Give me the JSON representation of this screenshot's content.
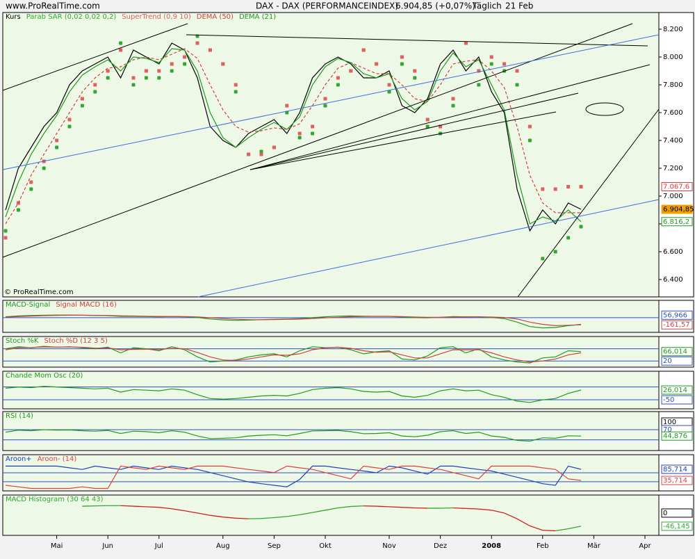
{
  "header": {
    "site": "www.ProRealTime.com",
    "title": "DAX - DAX (PERFORMANCEINDEX)",
    "quote": "6.904,85 (+0,07%)",
    "period": "Täglich",
    "date": "21 Feb",
    "watermark": "© ProRealTime.com"
  },
  "chart_data": [
    {
      "type": "line",
      "categories": [
        null,
        null,
        null,
        null,
        "Mai",
        null,
        null,
        null,
        "Jun",
        null,
        null,
        null,
        "Jul",
        null,
        null,
        null,
        null,
        "Aug",
        null,
        null,
        null,
        "Sep",
        null,
        null,
        null,
        "Okt",
        null,
        null,
        null,
        null,
        "Nov",
        null,
        null,
        null,
        "Dez",
        null,
        null,
        null,
        "2008",
        null,
        null,
        null,
        "Feb",
        null,
        null,
        null,
        "Mär",
        null,
        null,
        null,
        "Apr"
      ],
      "ylim": [
        6275,
        8320
      ],
      "yticks": [
        {
          "value": 6400,
          "label": "6.400"
        },
        {
          "value": 6600,
          "label": "6.600"
        },
        {
          "value": 6800,
          "label": "6.800"
        },
        {
          "value": 7000,
          "label": "7.000"
        },
        {
          "value": 7200,
          "label": "7.200"
        },
        {
          "value": 7400,
          "label": "7.400"
        },
        {
          "value": 7600,
          "label": "7.600"
        },
        {
          "value": 7800,
          "label": "7.800"
        },
        {
          "value": 8000,
          "label": "8.000"
        },
        {
          "value": 8200,
          "label": "8.200"
        }
      ],
      "series": [
        {
          "name": "Kurs",
          "color": "#000000",
          "style": "line",
          "values": [
            6900,
            7200,
            7350,
            7500,
            7600,
            7800,
            7900,
            7950,
            8000,
            7850,
            8050,
            8000,
            7950,
            8100,
            8050,
            7850,
            7500,
            7400,
            7350,
            7450,
            7500,
            7550,
            7450,
            7600,
            7850,
            7950,
            8000,
            7950,
            7850,
            7850,
            7900,
            7650,
            7600,
            7700,
            7950,
            8050,
            7900,
            8000,
            7750,
            7600,
            7050,
            6750,
            6900,
            6800,
            6950,
            6904.85,
            null,
            null,
            null,
            null,
            null
          ]
        },
        {
          "name": "Parab SAR (0,02 0,02 0,2)",
          "color": "#2fa82f",
          "style": "dots",
          "values": [
            6750,
            6900,
            7050,
            7200,
            7350,
            7500,
            7650,
            7750,
            7850,
            8100,
            7800,
            7850,
            7850,
            7900,
            7950,
            8150,
            8050,
            7950,
            7750,
            7300,
            7320,
            7350,
            7600,
            7420,
            7450,
            7650,
            7800,
            7900,
            8050,
            7950,
            7750,
            7950,
            7850,
            7500,
            7450,
            7650,
            8100,
            7800,
            7950,
            7900,
            7800,
            7400,
            6550,
            6600,
            6700,
            6780,
            null,
            null,
            null,
            null,
            null
          ]
        },
        {
          "name": "SuperTrend (0,9 10)",
          "color": "#e06060",
          "style": "squares",
          "values": [
            6700,
            6950,
            7100,
            7250,
            7400,
            7550,
            7700,
            7800,
            7900,
            8050,
            7850,
            7900,
            7900,
            7950,
            8000,
            8100,
            8050,
            7950,
            7800,
            7300,
            7300,
            7350,
            7650,
            7450,
            7500,
            7700,
            7850,
            7900,
            8050,
            7950,
            7800,
            8000,
            7900,
            7550,
            7500,
            7700,
            8100,
            7900,
            8000,
            7950,
            7900,
            7500,
            7050,
            7050,
            7067.6,
            7067.6,
            null,
            null,
            null,
            null,
            null
          ]
        },
        {
          "name": "DEMA (50)",
          "color": "#d04040",
          "style": "dashed",
          "values": [
            6800,
            6950,
            7150,
            7300,
            7450,
            7600,
            7750,
            7850,
            7920,
            7930,
            7980,
            8000,
            7980,
            8020,
            8060,
            7990,
            7800,
            7620,
            7500,
            7460,
            7470,
            7490,
            7480,
            7520,
            7650,
            7800,
            7920,
            7960,
            7920,
            7880,
            7880,
            7800,
            7700,
            7680,
            7800,
            7950,
            7970,
            7980,
            7900,
            7780,
            7500,
            7150,
            6950,
            6880,
            6880,
            6880,
            null,
            null,
            null,
            null,
            null
          ]
        },
        {
          "name": "DEMA (21)",
          "color": "#1f9a1f",
          "style": "line",
          "values": [
            6850,
            7100,
            7300,
            7450,
            7580,
            7750,
            7870,
            7930,
            7980,
            7900,
            8000,
            7990,
            7960,
            8060,
            8050,
            7900,
            7600,
            7420,
            7350,
            7420,
            7480,
            7530,
            7480,
            7570,
            7800,
            7930,
            7990,
            7960,
            7880,
            7850,
            7880,
            7700,
            7620,
            7680,
            7900,
            8030,
            7930,
            7980,
            7800,
            7620,
            7150,
            6800,
            6850,
            6820,
            6900,
            6816.2,
            null,
            null,
            null,
            null,
            null
          ]
        }
      ],
      "markers": [
        {
          "value": 7067.6,
          "label": "7.067,6",
          "color": "#d04040"
        },
        {
          "value": 6904.85,
          "label": "6.904,85",
          "color": "#f0a000"
        },
        {
          "value": 6816.2,
          "label": "6.816,2",
          "color": "#1f9a1f"
        }
      ]
    },
    {
      "type": "line",
      "ylim": [
        -330,
        390
      ],
      "levels": [
        0
      ],
      "series": [
        {
          "name": "MACD-Signal",
          "color": "#1f9a1f",
          "style": "line",
          "values": [
            20,
            40,
            50,
            55,
            60,
            60,
            55,
            50,
            45,
            30,
            30,
            25,
            20,
            25,
            20,
            5,
            -30,
            -50,
            -60,
            -55,
            -45,
            -35,
            -30,
            -20,
            0,
            20,
            35,
            40,
            35,
            30,
            30,
            15,
            0,
            -5,
            10,
            25,
            20,
            20,
            5,
            -20,
            -100,
            -200,
            -230,
            -220,
            -180,
            -150,
            null,
            null,
            null,
            null,
            null
          ]
        },
        {
          "name": "Signal MACD (16)",
          "color": "#d04040",
          "style": "line",
          "values": [
            10,
            25,
            35,
            45,
            50,
            55,
            55,
            52,
            50,
            42,
            38,
            33,
            28,
            27,
            24,
            18,
            0,
            -20,
            -35,
            -45,
            -45,
            -42,
            -38,
            -32,
            -20,
            -5,
            10,
            22,
            28,
            30,
            30,
            25,
            15,
            8,
            8,
            15,
            18,
            19,
            15,
            5,
            -30,
            -100,
            -150,
            -180,
            -170,
            -161.57,
            null,
            null,
            null,
            null,
            null
          ]
        }
      ],
      "markers": [
        {
          "value": 56.966,
          "label": "56,966",
          "color": "#3050c0"
        },
        {
          "value": -161.57,
          "label": "-161,57",
          "color": "#d04040"
        }
      ]
    },
    {
      "type": "line",
      "ylim": [
        -10,
        140
      ],
      "levels": [
        20,
        80
      ],
      "series": [
        {
          "name": "Stoch %K",
          "color": "#1f9a1f",
          "style": "line",
          "values": [
            80,
            90,
            85,
            92,
            88,
            90,
            85,
            80,
            88,
            60,
            85,
            80,
            70,
            90,
            75,
            40,
            15,
            20,
            25,
            40,
            50,
            55,
            40,
            70,
            90,
            85,
            88,
            75,
            55,
            65,
            70,
            30,
            25,
            45,
            85,
            90,
            60,
            80,
            40,
            25,
            15,
            10,
            35,
            40,
            70,
            66.014,
            null,
            null,
            null,
            null,
            null
          ]
        },
        {
          "name": "Stoch %D (12 3 5)",
          "color": "#d04040",
          "style": "line",
          "values": [
            75,
            85,
            86,
            89,
            88,
            89,
            87,
            83,
            84,
            75,
            77,
            78,
            76,
            82,
            80,
            62,
            40,
            25,
            22,
            30,
            40,
            50,
            48,
            55,
            75,
            85,
            87,
            82,
            70,
            63,
            65,
            50,
            35,
            35,
            55,
            75,
            75,
            75,
            60,
            40,
            25,
            15,
            20,
            30,
            50,
            60,
            null,
            null,
            null,
            null,
            null
          ]
        }
      ],
      "markers": [
        {
          "value": 66.014,
          "label": "66,014",
          "color": "#1f9a1f"
        },
        {
          "value": 20,
          "label": "20",
          "color": "#3050c0"
        }
      ]
    },
    {
      "type": "line",
      "ylim": [
        -120,
        172
      ],
      "levels": [
        50,
        -50
      ],
      "series": [
        {
          "name": "Chande Mom Osc (20)",
          "color": "#1f9a1f",
          "style": "line",
          "values": [
            40,
            50,
            45,
            55,
            50,
            45,
            40,
            35,
            40,
            10,
            30,
            25,
            20,
            35,
            25,
            -10,
            -40,
            -45,
            -40,
            -30,
            -20,
            -15,
            -20,
            0,
            30,
            40,
            45,
            35,
            15,
            10,
            15,
            -20,
            -30,
            -15,
            20,
            35,
            20,
            25,
            -10,
            -30,
            -60,
            -70,
            -50,
            -40,
            0,
            26.014,
            null,
            null,
            null,
            null,
            null
          ]
        }
      ],
      "markers": [
        {
          "value": 26.014,
          "label": "26,014",
          "color": "#1f9a1f"
        },
        {
          "value": -50,
          "label": "-50",
          "color": "#3050c0"
        }
      ]
    },
    {
      "type": "line",
      "ylim": [
        -12,
        141
      ],
      "levels": [
        70,
        30
      ],
      "series": [
        {
          "name": "RSI (14)",
          "color": "#1f9a1f",
          "style": "line",
          "values": [
            60,
            68,
            66,
            70,
            68,
            69,
            66,
            64,
            67,
            55,
            64,
            62,
            58,
            66,
            60,
            45,
            35,
            36,
            38,
            45,
            48,
            50,
            46,
            55,
            65,
            66,
            67,
            62,
            54,
            55,
            58,
            45,
            42,
            48,
            62,
            66,
            55,
            60,
            45,
            40,
            28,
            25,
            38,
            36,
            46,
            44.876,
            null,
            null,
            null,
            null,
            null
          ]
        }
      ],
      "markers": [
        {
          "value": 100,
          "label": "100",
          "color": "#000000"
        },
        {
          "value": 70,
          "label": "70",
          "color": "#3050c0"
        },
        {
          "value": 44.876,
          "label": "44,876",
          "color": "#1f9a1f"
        }
      ]
    },
    {
      "type": "line",
      "ylim": [
        -11,
        151
      ],
      "levels": [
        70,
        30
      ],
      "series": [
        {
          "name": "Aroon+",
          "color": "#2040c0",
          "style": "line",
          "values": [
            100,
            100,
            100,
            100,
            100,
            92,
            85,
            100,
            92,
            85,
            100,
            92,
            85,
            100,
            92,
            85,
            71,
            57,
            43,
            29,
            21,
            14,
            7,
            40,
            100,
            100,
            92,
            85,
            78,
            70,
            100,
            92,
            78,
            64,
            100,
            100,
            92,
            85,
            78,
            64,
            50,
            36,
            21,
            14,
            100,
            85.714,
            null,
            null,
            null,
            null,
            null
          ]
        },
        {
          "name": "Aroon- (14)",
          "color": "#e04040",
          "style": "line",
          "values": [
            14,
            7,
            0,
            0,
            0,
            0,
            7,
            0,
            0,
            100,
            92,
            85,
            100,
            92,
            85,
            100,
            100,
            100,
            92,
            85,
            78,
            71,
            100,
            92,
            85,
            71,
            57,
            43,
            100,
            92,
            85,
            100,
            100,
            92,
            85,
            71,
            57,
            43,
            100,
            100,
            100,
            100,
            92,
            85,
            43,
            35.714,
            null,
            null,
            null,
            null,
            null
          ]
        }
      ],
      "markers": [
        {
          "value": 85.714,
          "label": "85,714",
          "color": "#2040c0"
        },
        {
          "value": 35.714,
          "label": "35,714",
          "color": "#e04040"
        }
      ]
    },
    {
      "type": "line",
      "ylim": [
        -78,
        63
      ],
      "series": [
        {
          "name": "MACD Histogram (30 64 43)",
          "color": "#2fa82f",
          "style": "signed",
          "values": [
            null,
            null,
            null,
            null,
            null,
            null,
            24,
            25,
            26,
            26,
            24,
            22,
            20,
            15,
            8,
            0,
            -8,
            -14,
            -18,
            -20,
            -19,
            -16,
            -12,
            -6,
            2,
            10,
            18,
            23,
            25,
            24,
            22,
            20,
            18,
            17,
            17,
            18,
            16,
            14,
            10,
            0,
            -20,
            -45,
            -60,
            -62,
            -55,
            -46.145,
            null,
            null,
            null,
            null,
            null
          ]
        }
      ],
      "markers": [
        {
          "value": 0,
          "label": "0",
          "color": "#000000"
        },
        {
          "value": -46.145,
          "label": "-46,145",
          "color": "#2fa82f"
        }
      ]
    }
  ]
}
